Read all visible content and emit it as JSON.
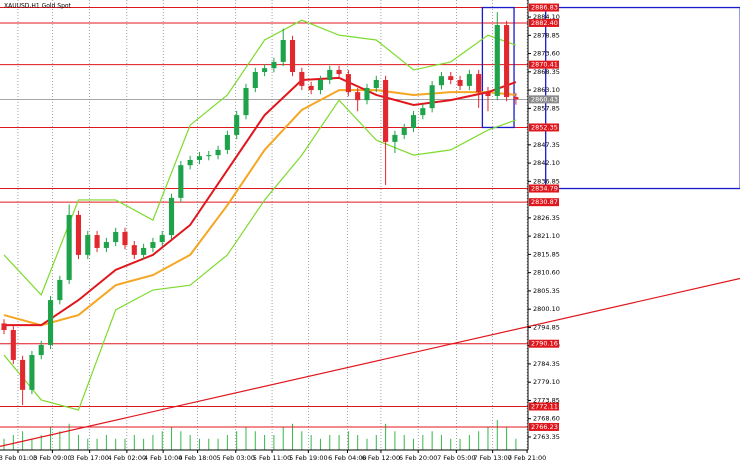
{
  "chart_data": {
    "type": "candlestick",
    "title": "XAUUSD,H1  Gold Spot",
    "up_color": "#1fa34a",
    "down_color": "#e0282e",
    "candles": [
      [
        2796.0,
        2797.2,
        2792.9,
        2794.1
      ],
      [
        2794.1,
        2795.3,
        2784.3,
        2785.5
      ],
      [
        2785.5,
        2786.7,
        2772.5,
        2776.9
      ],
      [
        2776.9,
        2788.1,
        2775.7,
        2786.9
      ],
      [
        2786.9,
        2791.0,
        2785.7,
        2789.8
      ],
      [
        2789.8,
        2803.9,
        2788.6,
        2802.7
      ],
      [
        2802.7,
        2809.7,
        2801.5,
        2808.5
      ],
      [
        2808.5,
        2830.2,
        2807.3,
        2827.2
      ],
      [
        2827.2,
        2828.4,
        2814.5,
        2815.7
      ],
      [
        2815.7,
        2822.6,
        2814.5,
        2821.4
      ],
      [
        2821.4,
        2822.6,
        2816.5,
        2817.7
      ],
      [
        2817.7,
        2820.6,
        2816.5,
        2819.4
      ],
      [
        2819.4,
        2823.5,
        2818.2,
        2822.3
      ],
      [
        2822.3,
        2823.5,
        2817.3,
        2818.5
      ],
      [
        2818.5,
        2819.7,
        2814.5,
        2815.7
      ],
      [
        2815.7,
        2818.9,
        2814.5,
        2817.7
      ],
      [
        2817.7,
        2820.6,
        2816.5,
        2819.4
      ],
      [
        2819.4,
        2822.6,
        2818.2,
        2821.4
      ],
      [
        2821.4,
        2833.3,
        2820.2,
        2832.1
      ],
      [
        2832.1,
        2842.7,
        2830.9,
        2841.5
      ],
      [
        2841.5,
        2844.2,
        2840.3,
        2843.0
      ],
      [
        2843.0,
        2845.3,
        2841.8,
        2844.1
      ],
      [
        2844.1,
        2845.6,
        2842.9,
        2844.4
      ],
      [
        2844.4,
        2847.1,
        2843.2,
        2845.9
      ],
      [
        2845.9,
        2851.4,
        2844.7,
        2850.2
      ],
      [
        2850.2,
        2857.1,
        2849.0,
        2855.9
      ],
      [
        2855.9,
        2864.9,
        2854.7,
        2863.7
      ],
      [
        2863.7,
        2869.5,
        2862.5,
        2868.3
      ],
      [
        2868.3,
        2870.6,
        2867.1,
        2869.4
      ],
      [
        2869.4,
        2872.4,
        2868.2,
        2871.2
      ],
      [
        2871.2,
        2880.8,
        2870.0,
        2877.5
      ],
      [
        2877.5,
        2878.7,
        2867.1,
        2868.3
      ],
      [
        2868.3,
        2869.5,
        2863.1,
        2864.3
      ],
      [
        2864.3,
        2865.5,
        2861.9,
        2863.1
      ],
      [
        2863.1,
        2867.2,
        2861.9,
        2866.0
      ],
      [
        2866.0,
        2870.1,
        2864.8,
        2868.9
      ],
      [
        2868.9,
        2870.1,
        2866.5,
        2867.7
      ],
      [
        2867.7,
        2868.9,
        2861.3,
        2862.5
      ],
      [
        2862.5,
        2863.7,
        2857.0,
        2860.2
      ],
      [
        2860.2,
        2864.9,
        2859.0,
        2863.7
      ],
      [
        2863.7,
        2867.2,
        2862.5,
        2866.0
      ],
      [
        2866.0,
        2867.2,
        2835.8,
        2848.2
      ],
      [
        2848.2,
        2851.4,
        2845.0,
        2850.2
      ],
      [
        2850.2,
        2853.4,
        2849.0,
        2852.2
      ],
      [
        2852.2,
        2857.1,
        2851.0,
        2855.9
      ],
      [
        2855.9,
        2859.1,
        2854.7,
        2857.9
      ],
      [
        2857.9,
        2865.7,
        2856.7,
        2864.5
      ],
      [
        2864.5,
        2868.3,
        2863.3,
        2867.1
      ],
      [
        2867.1,
        2868.3,
        2864.8,
        2866.0
      ],
      [
        2866.0,
        2867.2,
        2863.1,
        2864.3
      ],
      [
        2864.3,
        2868.9,
        2863.1,
        2867.7
      ],
      [
        2867.7,
        2868.9,
        2858.0,
        2862.5
      ],
      [
        2862.5,
        2864.0,
        2857.0,
        2861.4
      ],
      [
        2861.4,
        2885.5,
        2860.2,
        2881.8
      ],
      [
        2881.8,
        2883.0,
        2859.9,
        2861.1
      ],
      [
        2861.1,
        2862.3,
        2858.9,
        2860.43
      ]
    ],
    "volumes": [
      3,
      4,
      5,
      3,
      4,
      6,
      5,
      7,
      4,
      3,
      3,
      4,
      3,
      3,
      4,
      3,
      4,
      5,
      6,
      5,
      4,
      3,
      3,
      3,
      4,
      5,
      6,
      5,
      4,
      4,
      6,
      7,
      5,
      4,
      3,
      4,
      4,
      5,
      4,
      3,
      4,
      7,
      5,
      4,
      3,
      4,
      5,
      4,
      3,
      3,
      4,
      5,
      6,
      8,
      6,
      3
    ],
    "vlim": [
      0,
      12
    ],
    "indicator_x": [
      0,
      4,
      8,
      12,
      16,
      20,
      24,
      28,
      32,
      36,
      40,
      44,
      48,
      52,
      55
    ],
    "indicators": [
      {
        "color": "#7ddb2e",
        "values": [
          2815.7,
          2804.2,
          2831.5,
          2831.5,
          2825.7,
          2853.0,
          2861.7,
          2877.5,
          2883.2,
          2878.9,
          2877.5,
          2868.9,
          2871.2,
          2878.9,
          2876.0
        ]
      },
      {
        "color": "#7ddb2e",
        "values": [
          2786.9,
          2774.0,
          2771.1,
          2799.9,
          2805.6,
          2807.0,
          2815.7,
          2831.5,
          2844.4,
          2860.2,
          2848.7,
          2844.4,
          2845.9,
          2851.6,
          2854.5
        ]
      },
      {
        "color": "#f5a623",
        "values": [
          2798.4,
          2795.5,
          2798.4,
          2807.0,
          2809.9,
          2815.7,
          2830.0,
          2845.9,
          2857.4,
          2863.1,
          2863.1,
          2861.7,
          2862.5,
          2862.5,
          2861.7
        ]
      },
      {
        "color": "#e0161d",
        "values": [
          2795.5,
          2795.5,
          2802.7,
          2811.4,
          2815.7,
          2824.3,
          2840.1,
          2855.9,
          2866.0,
          2866.6,
          2861.7,
          2858.8,
          2860.2,
          2862.5,
          2865.4
        ]
      }
    ],
    "trendline": {
      "color": "#e0161d",
      "x": [
        0,
        55
      ],
      "y": [
        2760.9,
        2794.3
      ]
    },
    "rectangles": [
      {
        "color": "#1a1acc",
        "x": [
          51.4,
          54.8
        ],
        "y": [
          2852.35,
          2886.83
        ]
      },
      {
        "color": "#1a1acc",
        "x": [
          58.2,
          79.1
        ],
        "y": [
          2834.79,
          2886.83
        ]
      }
    ],
    "level_color": "#e0161d",
    "levels": [
      2886.83,
      {
        "value": 2882.4,
        "label": "2882.40"
      },
      2870.41,
      2852.35,
      2834.79,
      2830.87,
      2790.16,
      2772.11,
      2766.23
    ],
    "current_price": 2860.43,
    "current_color": "#8a8a8a",
    "xlim": [
      -0.43,
      56.3
    ],
    "ylim": [
      2759.6,
      2889.0
    ],
    "yticks": [
      {
        "value": 2884.1,
        "label": "2884.10"
      },
      2878.85,
      {
        "value": 2873.6,
        "label": "2873.60"
      },
      2868.35,
      {
        "value": 2863.1,
        "label": "2863.10"
      },
      2857.85,
      2847.35,
      {
        "value": 2842.1,
        "label": "2842.10"
      },
      2836.85,
      2826.35,
      {
        "value": 2821.1,
        "label": "2821.10"
      },
      2815.85,
      {
        "value": 2810.6,
        "label": "2810.60"
      },
      2805.35,
      {
        "value": 2800.1,
        "label": "2800.10"
      },
      2794.85,
      {
        "value": 2789.6,
        "label": "2789.60"
      },
      2784.35,
      {
        "value": 2779.1,
        "label": "2779.10"
      },
      2773.85,
      {
        "value": 2768.6,
        "label": "2768.60"
      },
      2763.35
    ],
    "xticks": [
      {
        "value": 1.5,
        "label": "3 Feb 01:00"
      },
      {
        "value": 5.2,
        "label": "3 Feb 09:00"
      },
      {
        "value": 9.2,
        "label": "3 Feb 17:00"
      },
      {
        "value": 13.2,
        "label": "4 Feb 02:00"
      },
      {
        "value": 17.1,
        "label": "4 Feb 10:00"
      },
      {
        "value": 20.8,
        "label": "4 Feb 18:00"
      },
      {
        "value": 24.9,
        "label": "5 Feb 03:00"
      },
      {
        "value": 28.8,
        "label": "5 Feb 11:00"
      },
      {
        "value": 32.7,
        "label": "5 Feb 19:00"
      },
      {
        "value": 36.9,
        "label": "6 Feb 04:00"
      },
      {
        "value": 40.5,
        "label": "6 Feb 12:00"
      },
      {
        "value": 44.5,
        "label": "6 Feb 20:00"
      },
      {
        "value": 48.6,
        "label": "7 Feb 05:00"
      },
      {
        "value": 52.5,
        "label": "7 Feb 13:00"
      },
      {
        "value": 56.2,
        "label": "7 Feb 21:00"
      }
    ],
    "grid": true
  }
}
